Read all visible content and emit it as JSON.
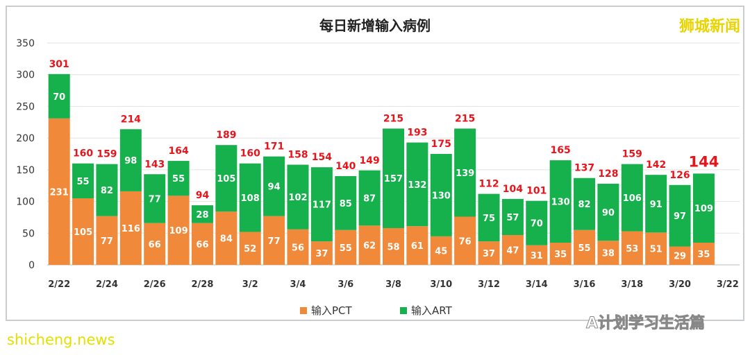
{
  "chart_data": {
    "type": "bar",
    "stacked": true,
    "title": "每日新增输入病例",
    "categories": [
      "2/22",
      "2/23",
      "2/24",
      "2/25",
      "2/26",
      "2/27",
      "2/28",
      "3/1",
      "3/2",
      "3/3",
      "3/4",
      "3/5",
      "3/6",
      "3/7",
      "3/8",
      "3/9",
      "3/10",
      "3/11",
      "3/12",
      "3/13",
      "3/14",
      "3/15",
      "3/16",
      "3/17",
      "3/18",
      "3/19",
      "3/20",
      "3/21"
    ],
    "xtick_labels": [
      "2/22",
      "2/24",
      "2/26",
      "2/28",
      "3/2",
      "3/4",
      "3/6",
      "3/8",
      "3/10",
      "3/12",
      "3/14",
      "3/16",
      "3/18",
      "3/20",
      "3/22"
    ],
    "series": [
      {
        "name": "输入PCT",
        "color": "#f08a3a",
        "values": [
          231,
          105,
          77,
          116,
          66,
          109,
          66,
          84,
          52,
          77,
          56,
          37,
          55,
          62,
          58,
          61,
          45,
          76,
          37,
          47,
          31,
          35,
          55,
          38,
          53,
          51,
          29,
          35
        ]
      },
      {
        "name": "输入ART",
        "color": "#16b04c",
        "values": [
          70,
          55,
          82,
          98,
          77,
          55,
          28,
          105,
          108,
          94,
          102,
          117,
          85,
          87,
          157,
          132,
          130,
          139,
          75,
          57,
          70,
          130,
          82,
          90,
          106,
          91,
          97,
          109
        ]
      }
    ],
    "totals": [
      301,
      160,
      159,
      214,
      143,
      164,
      94,
      189,
      160,
      171,
      158,
      154,
      140,
      149,
      215,
      193,
      175,
      215,
      112,
      104,
      101,
      165,
      137,
      128,
      159,
      142,
      126,
      144
    ],
    "total_color": "#e8141b",
    "ylim": [
      0,
      350
    ],
    "yticks": [
      0,
      50,
      100,
      150,
      200,
      250,
      300,
      350
    ],
    "grid": true,
    "legend": "bottom",
    "xlabel": "",
    "ylabel": ""
  },
  "watermarks": {
    "top_right": "狮城新闻",
    "bottom_right": "A计划学习生活篇",
    "bottom_left": "shicheng.news"
  }
}
